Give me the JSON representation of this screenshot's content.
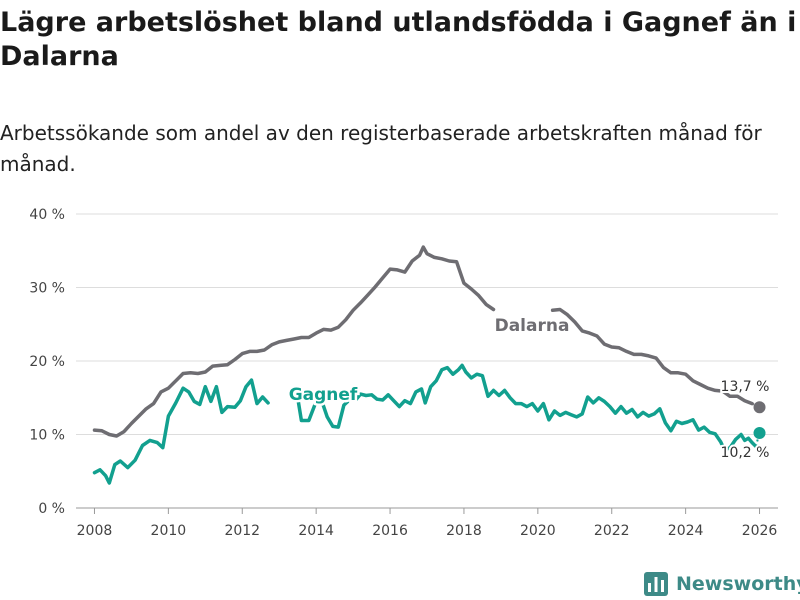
{
  "title": "Lägre arbetslöshet bland utlandsfödda i Gagnef än i Dalarna",
  "subtitle": "Arbetssökande som andel av den registerbaserade arbetskraften månad för månad.",
  "brand": {
    "name": "Newsworthy",
    "icon": "bar-chart-logo-icon",
    "color": "#3d8a87"
  },
  "chart_data": {
    "type": "line",
    "title": "Lägre arbetslöshet bland utlandsfödda i Gagnef än i Dalarna",
    "xlabel": "",
    "ylabel": "",
    "xlim": [
      2007.5,
      2026.5
    ],
    "ylim": [
      0,
      40
    ],
    "x_ticks": [
      2008,
      2010,
      2012,
      2014,
      2016,
      2018,
      2020,
      2022,
      2024,
      2026
    ],
    "y_ticks": [
      0,
      10,
      20,
      30,
      40
    ],
    "y_tick_labels": [
      "0 %",
      "10 %",
      "20 %",
      "30 %",
      "40 %"
    ],
    "grid": true,
    "series": [
      {
        "name": "Dalarna",
        "color": "#6e6d72",
        "end_label": "13,7 %",
        "end_value": 13.7,
        "end_x": 2026.0,
        "points": [
          [
            2008.0,
            10.6
          ],
          [
            2008.2,
            10.5
          ],
          [
            2008.4,
            10.0
          ],
          [
            2008.6,
            9.8
          ],
          [
            2008.8,
            10.4
          ],
          [
            2009.0,
            11.5
          ],
          [
            2009.2,
            12.5
          ],
          [
            2009.4,
            13.5
          ],
          [
            2009.6,
            14.2
          ],
          [
            2009.8,
            15.8
          ],
          [
            2010.0,
            16.3
          ],
          [
            2010.2,
            17.3
          ],
          [
            2010.4,
            18.3
          ],
          [
            2010.6,
            18.4
          ],
          [
            2010.8,
            18.3
          ],
          [
            2011.0,
            18.5
          ],
          [
            2011.2,
            19.3
          ],
          [
            2011.4,
            19.4
          ],
          [
            2011.6,
            19.5
          ],
          [
            2011.8,
            20.2
          ],
          [
            2012.0,
            21.0
          ],
          [
            2012.2,
            21.3
          ],
          [
            2012.4,
            21.3
          ],
          [
            2012.6,
            21.5
          ],
          [
            2012.8,
            22.2
          ],
          [
            2013.0,
            22.6
          ],
          [
            2013.2,
            22.8
          ],
          [
            2013.4,
            23.0
          ],
          [
            2013.6,
            23.2
          ],
          [
            2013.8,
            23.2
          ],
          [
            2014.0,
            23.8
          ],
          [
            2014.2,
            24.3
          ],
          [
            2014.4,
            24.2
          ],
          [
            2014.6,
            24.6
          ],
          [
            2014.8,
            25.6
          ],
          [
            2015.0,
            26.9
          ],
          [
            2015.2,
            27.9
          ],
          [
            2015.4,
            29.0
          ],
          [
            2015.6,
            30.1
          ],
          [
            2015.8,
            31.3
          ],
          [
            2016.0,
            32.5
          ],
          [
            2016.2,
            32.4
          ],
          [
            2016.4,
            32.1
          ],
          [
            2016.6,
            33.6
          ],
          [
            2016.8,
            34.4
          ],
          [
            2016.9,
            35.5
          ],
          [
            2017.0,
            34.6
          ],
          [
            2017.2,
            34.1
          ],
          [
            2017.4,
            33.9
          ],
          [
            2017.6,
            33.6
          ],
          [
            2017.8,
            33.5
          ],
          [
            2018.0,
            30.6
          ],
          [
            2018.2,
            29.8
          ],
          [
            2018.4,
            28.9
          ],
          [
            2018.6,
            27.7
          ],
          [
            2018.8,
            27.0
          ]
        ],
        "points_after_label": [
          [
            2020.4,
            26.9
          ],
          [
            2020.6,
            27.0
          ],
          [
            2020.8,
            26.3
          ],
          [
            2021.0,
            25.3
          ],
          [
            2021.2,
            24.1
          ],
          [
            2021.4,
            23.8
          ],
          [
            2021.6,
            23.4
          ],
          [
            2021.8,
            22.3
          ],
          [
            2022.0,
            21.9
          ],
          [
            2022.2,
            21.8
          ],
          [
            2022.4,
            21.3
          ],
          [
            2022.6,
            20.9
          ],
          [
            2022.8,
            20.9
          ],
          [
            2023.0,
            20.7
          ],
          [
            2023.2,
            20.4
          ],
          [
            2023.4,
            19.1
          ],
          [
            2023.6,
            18.4
          ],
          [
            2023.8,
            18.4
          ],
          [
            2024.0,
            18.2
          ],
          [
            2024.2,
            17.3
          ],
          [
            2024.4,
            16.8
          ],
          [
            2024.6,
            16.3
          ],
          [
            2024.8,
            16.0
          ],
          [
            2025.0,
            15.9
          ],
          [
            2025.2,
            15.2
          ],
          [
            2025.4,
            15.2
          ],
          [
            2025.6,
            14.6
          ],
          [
            2025.8,
            14.2
          ]
        ]
      },
      {
        "name": "Gagnef",
        "color": "#12a08f",
        "end_label": "10,2 %",
        "end_value": 10.2,
        "end_x": 2026.0,
        "points_before_label": [
          [
            2008.0,
            4.8
          ],
          [
            2008.15,
            5.2
          ],
          [
            2008.3,
            4.4
          ],
          [
            2008.4,
            3.4
          ],
          [
            2008.55,
            5.9
          ],
          [
            2008.7,
            6.4
          ],
          [
            2008.9,
            5.5
          ],
          [
            2009.1,
            6.5
          ],
          [
            2009.3,
            8.5
          ],
          [
            2009.5,
            9.2
          ],
          [
            2009.7,
            8.9
          ],
          [
            2009.85,
            8.2
          ],
          [
            2010.0,
            12.5
          ],
          [
            2010.2,
            14.3
          ],
          [
            2010.4,
            16.3
          ],
          [
            2010.55,
            15.8
          ],
          [
            2010.7,
            14.5
          ],
          [
            2010.85,
            14.1
          ],
          [
            2011.0,
            16.5
          ],
          [
            2011.15,
            14.5
          ],
          [
            2011.3,
            16.5
          ],
          [
            2011.45,
            13.0
          ],
          [
            2011.6,
            13.8
          ],
          [
            2011.8,
            13.7
          ],
          [
            2011.95,
            14.6
          ],
          [
            2012.1,
            16.5
          ],
          [
            2012.25,
            17.4
          ],
          [
            2012.4,
            14.2
          ],
          [
            2012.55,
            15.1
          ],
          [
            2012.7,
            14.3
          ]
        ],
        "points": [
          [
            2013.5,
            15.0
          ],
          [
            2013.6,
            11.9
          ],
          [
            2013.8,
            11.9
          ],
          [
            2014.0,
            14.5
          ],
          [
            2014.15,
            14.6
          ],
          [
            2014.3,
            12.4
          ],
          [
            2014.45,
            11.1
          ],
          [
            2014.6,
            11.0
          ],
          [
            2014.75,
            14.0
          ],
          [
            2014.9,
            14.7
          ],
          [
            2015.05,
            14.6
          ],
          [
            2015.2,
            15.5
          ],
          [
            2015.35,
            15.3
          ],
          [
            2015.5,
            15.4
          ],
          [
            2015.65,
            14.8
          ],
          [
            2015.8,
            14.7
          ],
          [
            2015.95,
            15.4
          ],
          [
            2016.1,
            14.6
          ],
          [
            2016.25,
            13.8
          ],
          [
            2016.4,
            14.6
          ],
          [
            2016.55,
            14.2
          ],
          [
            2016.7,
            15.8
          ],
          [
            2016.85,
            16.2
          ],
          [
            2016.95,
            14.3
          ],
          [
            2017.1,
            16.5
          ],
          [
            2017.25,
            17.3
          ],
          [
            2017.4,
            18.8
          ],
          [
            2017.55,
            19.1
          ],
          [
            2017.7,
            18.2
          ],
          [
            2017.85,
            18.8
          ],
          [
            2017.95,
            19.4
          ],
          [
            2018.05,
            18.5
          ],
          [
            2018.2,
            17.7
          ],
          [
            2018.35,
            18.2
          ],
          [
            2018.5,
            18.0
          ],
          [
            2018.65,
            15.2
          ],
          [
            2018.8,
            16.0
          ],
          [
            2018.95,
            15.3
          ],
          [
            2019.1,
            16.0
          ],
          [
            2019.25,
            15.0
          ],
          [
            2019.4,
            14.2
          ],
          [
            2019.55,
            14.2
          ],
          [
            2019.7,
            13.8
          ],
          [
            2019.85,
            14.2
          ],
          [
            2020.0,
            13.2
          ],
          [
            2020.15,
            14.2
          ],
          [
            2020.3,
            12.0
          ],
          [
            2020.45,
            13.2
          ],
          [
            2020.6,
            12.6
          ],
          [
            2020.75,
            13.0
          ],
          [
            2020.9,
            12.7
          ],
          [
            2021.05,
            12.4
          ],
          [
            2021.2,
            12.8
          ],
          [
            2021.35,
            15.1
          ],
          [
            2021.5,
            14.3
          ],
          [
            2021.65,
            15.0
          ],
          [
            2021.8,
            14.5
          ],
          [
            2021.95,
            13.8
          ],
          [
            2022.1,
            12.9
          ],
          [
            2022.25,
            13.8
          ],
          [
            2022.4,
            12.9
          ],
          [
            2022.55,
            13.4
          ],
          [
            2022.7,
            12.4
          ],
          [
            2022.85,
            13.0
          ],
          [
            2023.0,
            12.5
          ],
          [
            2023.15,
            12.8
          ],
          [
            2023.3,
            13.5
          ],
          [
            2023.45,
            11.6
          ],
          [
            2023.6,
            10.5
          ],
          [
            2023.75,
            11.8
          ],
          [
            2023.9,
            11.5
          ],
          [
            2024.05,
            11.7
          ],
          [
            2024.2,
            12.0
          ],
          [
            2024.35,
            10.6
          ],
          [
            2024.5,
            11.0
          ],
          [
            2024.65,
            10.3
          ],
          [
            2024.8,
            10.1
          ],
          [
            2024.95,
            9.0
          ],
          [
            2025.05,
            7.9
          ],
          [
            2025.2,
            8.2
          ],
          [
            2025.35,
            9.3
          ],
          [
            2025.5,
            10.0
          ],
          [
            2025.6,
            9.2
          ],
          [
            2025.7,
            9.5
          ],
          [
            2025.8,
            8.9
          ],
          [
            2025.9,
            8.4
          ]
        ]
      }
    ]
  }
}
